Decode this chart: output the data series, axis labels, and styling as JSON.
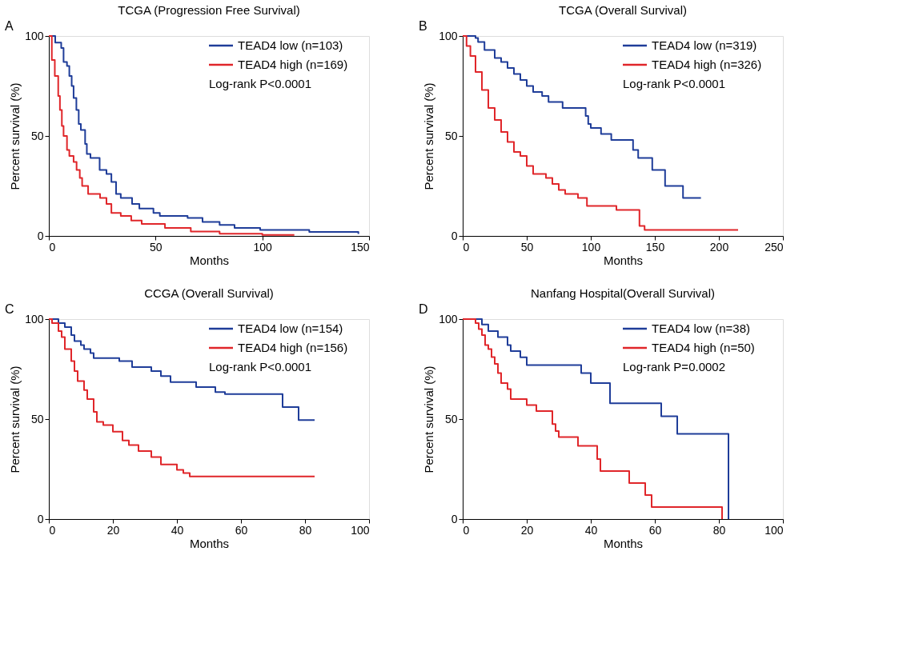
{
  "chart_data": [
    {
      "type": "step",
      "title": "TCGA (Progression Free Survival)",
      "xlabel": "Months",
      "ylabel": "Percent survival (%)",
      "annotations": [
        "A",
        "Log-rank P<0.0001"
      ],
      "legend": "top right",
      "grid": false,
      "xlim": [
        0,
        150
      ],
      "xticks": [
        0,
        50,
        100,
        150
      ],
      "ylim": [
        0,
        100
      ],
      "yticks": [
        0,
        50,
        100
      ],
      "series": [
        {
          "name": "TEAD4 low (n=103)",
          "color": "#1f3d99",
          "x": [
            0,
            3,
            5.8,
            6.9,
            8.5,
            9.6,
            10.7,
            11.6,
            12.9,
            14,
            15,
            17,
            17.8,
            19.5,
            23.8,
            27,
            29.3,
            31.5,
            33.7,
            39,
            42.4,
            49,
            52,
            65,
            72,
            80,
            87,
            99,
            122,
            145
          ],
          "values": [
            100,
            96.7,
            94,
            87,
            85,
            80,
            75,
            69,
            63,
            56,
            53,
            46,
            41,
            39,
            33,
            31,
            27,
            21,
            19,
            16,
            13.7,
            11.5,
            10,
            9,
            7,
            5.5,
            4,
            3,
            2,
            1
          ]
        },
        {
          "name": "TEAD4 high (n=169)",
          "color": "#e0262a",
          "x": [
            0,
            1.4,
            2.8,
            4.4,
            5.2,
            6.1,
            6.9,
            8.5,
            9.6,
            11.6,
            13,
            14.5,
            15.6,
            18.4,
            24,
            27,
            29.3,
            33.7,
            38.6,
            43.5,
            54.4,
            66.5,
            80,
            100,
            115
          ],
          "values": [
            100,
            88,
            80,
            70,
            63,
            55,
            50,
            43,
            40,
            37,
            33,
            29,
            25,
            21,
            19,
            16,
            11.5,
            10,
            7.7,
            6,
            4,
            2.2,
            1.1,
            0.5,
            0.5
          ]
        }
      ]
    },
    {
      "type": "step",
      "title": "TCGA (Overall Survival)",
      "xlabel": "Months",
      "ylabel": "Percent survival (%)",
      "annotations": [
        "B",
        "Log-rank P<0.0001"
      ],
      "legend": "top right",
      "grid": false,
      "xlim": [
        0,
        250
      ],
      "xticks": [
        0,
        50,
        100,
        150,
        200,
        250
      ],
      "ylim": [
        0,
        100
      ],
      "yticks": [
        0,
        50,
        100
      ],
      "series": [
        {
          "name": "TEAD4 low (n=319)",
          "color": "#1f3d99",
          "x": [
            0,
            10,
            12,
            17,
            25,
            30,
            35,
            40,
            45,
            50,
            55,
            62,
            67,
            78,
            96,
            98,
            100,
            108,
            116,
            133,
            137,
            148,
            158,
            172,
            186
          ],
          "values": [
            100,
            99,
            97,
            93,
            89,
            87,
            84,
            81,
            78,
            75,
            72,
            70,
            67,
            64,
            60,
            56,
            54,
            51,
            48,
            43,
            39,
            33,
            25,
            19,
            19
          ]
        },
        {
          "name": "TEAD4 high (n=326)",
          "color": "#e0262a",
          "x": [
            0,
            3,
            6,
            10,
            15,
            20,
            25,
            30,
            35,
            40,
            45,
            50,
            55,
            65,
            70,
            75,
            80,
            90,
            97,
            120,
            138,
            142,
            215
          ],
          "values": [
            100,
            95,
            90,
            82,
            73,
            64,
            58,
            52,
            47,
            42,
            40,
            35,
            31,
            29,
            26,
            23,
            21,
            19,
            15,
            13,
            5,
            3,
            3
          ]
        }
      ]
    },
    {
      "type": "step",
      "title": "CCGA (Overall Survival)",
      "xlabel": "Months",
      "ylabel": "Percent survival (%)",
      "annotations": [
        "C",
        "Log-rank P<0.0001"
      ],
      "legend": "top right",
      "grid": false,
      "xlim": [
        0,
        100
      ],
      "xticks": [
        0,
        20,
        40,
        60,
        80,
        100
      ],
      "ylim": [
        0,
        100
      ],
      "yticks": [
        0,
        50,
        100
      ],
      "series": [
        {
          "name": "TEAD4 low (n=154)",
          "color": "#1f3d99",
          "x": [
            0,
            3,
            5,
            7,
            8,
            10,
            11,
            13,
            14,
            22,
            26,
            32,
            35,
            38,
            46,
            52,
            55,
            73,
            78,
            83
          ],
          "values": [
            100,
            98,
            96,
            92,
            89,
            87,
            85,
            83,
            80.5,
            79,
            76,
            74,
            71.5,
            68.5,
            66,
            63.5,
            62.5,
            56,
            49.5,
            49.5
          ]
        },
        {
          "name": "TEAD4 high (n=156)",
          "color": "#e0262a",
          "x": [
            0,
            1,
            3,
            4,
            5,
            7,
            8,
            9,
            11,
            12,
            14,
            15,
            17,
            20,
            23,
            25,
            28,
            32,
            35,
            40,
            42,
            44,
            83
          ],
          "values": [
            100,
            98,
            94,
            91,
            85,
            79,
            74,
            69,
            64.5,
            60,
            53.6,
            48.6,
            47,
            43.7,
            39.3,
            37,
            34,
            31,
            27.3,
            24.6,
            23,
            21.3,
            21.3
          ]
        }
      ]
    },
    {
      "type": "step",
      "title": "Nanfang Hospital(Overall Survival)",
      "xlabel": "Months",
      "ylabel": "Percent survival (%)",
      "annotations": [
        "D",
        "Log-rank P=0.0002"
      ],
      "legend": "top right",
      "grid": false,
      "xlim": [
        0,
        100
      ],
      "xticks": [
        0,
        20,
        40,
        60,
        80,
        100
      ],
      "ylim": [
        0,
        100
      ],
      "yticks": [
        0,
        50,
        100
      ],
      "series": [
        {
          "name": "TEAD4 low (n=38)",
          "color": "#1f3d99",
          "x": [
            0,
            6,
            8,
            11,
            14,
            15,
            18,
            20,
            37,
            40,
            46,
            62,
            67,
            83
          ],
          "values": [
            100,
            97.3,
            94,
            91,
            87,
            84,
            80.9,
            77,
            73,
            68,
            57.9,
            51.4,
            42.6,
            0
          ]
        },
        {
          "name": "TEAD4 high (n=50)",
          "color": "#e0262a",
          "x": [
            0,
            4,
            5,
            6,
            7,
            8,
            9,
            10,
            11,
            12,
            14,
            15,
            20,
            23,
            28,
            29,
            30,
            36,
            42,
            43,
            52,
            57,
            59,
            81
          ],
          "values": [
            100,
            98,
            95,
            92,
            87,
            85,
            81,
            77.6,
            73,
            68,
            65,
            60,
            57,
            54,
            47.5,
            44,
            41,
            36.6,
            30,
            24,
            18,
            12,
            6,
            0
          ]
        }
      ]
    }
  ]
}
